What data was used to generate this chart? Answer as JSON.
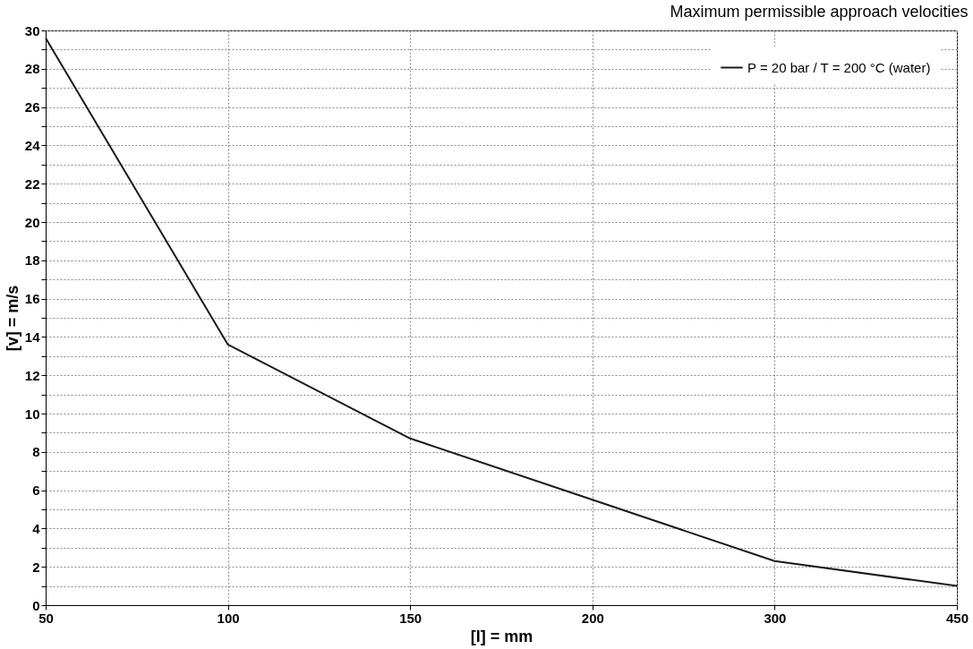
{
  "chart_data": {
    "type": "line",
    "title": "Maximum permissible approach velocities",
    "xlabel": "[l] = mm",
    "ylabel": "[v] = m/s",
    "categories": [
      "50",
      "100",
      "150",
      "200",
      "300",
      "450"
    ],
    "series": [
      {
        "name": "P = 20 bar / T = 200 °C (water)",
        "color": "#1a1a1a",
        "values": [
          29.6,
          13.6,
          8.7,
          5.5,
          2.3,
          1.0
        ]
      }
    ],
    "ylim": [
      0,
      30
    ],
    "yticks": [
      0,
      {
        "value": 1,
        "label": null
      },
      2,
      {
        "value": 3,
        "label": null
      },
      4,
      {
        "value": 5,
        "label": null
      },
      6,
      {
        "value": 7,
        "label": null
      },
      8,
      {
        "value": 9,
        "label": null
      },
      10,
      {
        "value": 11,
        "label": null
      },
      12,
      {
        "value": 13,
        "label": null
      },
      14,
      {
        "value": 15,
        "label": null
      },
      16,
      {
        "value": 17,
        "label": null
      },
      18,
      {
        "value": 19,
        "label": null
      },
      20,
      {
        "value": 21,
        "label": null
      },
      22,
      {
        "value": 23,
        "label": null
      },
      24,
      {
        "value": 25,
        "label": null
      },
      26,
      {
        "value": 27,
        "label": null
      },
      28,
      {
        "value": 29,
        "label": null
      },
      30
    ],
    "grid": true,
    "legend": "top right",
    "marker": "none",
    "line_style": "solid"
  }
}
